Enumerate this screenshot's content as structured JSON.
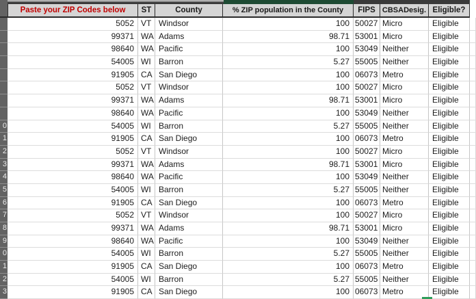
{
  "app": {
    "type": "spreadsheet-grid"
  },
  "columns": [
    {
      "id": "zip",
      "header": "Paste your ZIP Codes below"
    },
    {
      "id": "st",
      "header": "ST"
    },
    {
      "id": "county",
      "header": "County"
    },
    {
      "id": "pct",
      "header": "% ZIP population in the County"
    },
    {
      "id": "fips",
      "header": "FIPS"
    },
    {
      "id": "cbsa",
      "header": "CBSADesig."
    },
    {
      "id": "eligible",
      "header": "Eligible?"
    }
  ],
  "rows": [
    {
      "num": "",
      "zip": "5052",
      "st": "VT",
      "county": "Windsor",
      "pct": "100",
      "fips": "50027",
      "cbsa": "Micro",
      "eligible": "Eligible"
    },
    {
      "num": "",
      "zip": "99371",
      "st": "WA",
      "county": "Adams",
      "pct": "98.71",
      "fips": "53001",
      "cbsa": "Micro",
      "eligible": "Eligible"
    },
    {
      "num": "",
      "zip": "98640",
      "st": "WA",
      "county": "Pacific",
      "pct": "100",
      "fips": "53049",
      "cbsa": "Neither",
      "eligible": "Eligible"
    },
    {
      "num": "",
      "zip": "54005",
      "st": "WI",
      "county": "Barron",
      "pct": "5.27",
      "fips": "55005",
      "cbsa": "Neither",
      "eligible": "Eligible"
    },
    {
      "num": "",
      "zip": "91905",
      "st": "CA",
      "county": "San Diego",
      "pct": "100",
      "fips": "06073",
      "cbsa": "Metro",
      "eligible": "Eligible"
    },
    {
      "num": "",
      "zip": "5052",
      "st": "VT",
      "county": "Windsor",
      "pct": "100",
      "fips": "50027",
      "cbsa": "Micro",
      "eligible": "Eligible"
    },
    {
      "num": "",
      "zip": "99371",
      "st": "WA",
      "county": "Adams",
      "pct": "98.71",
      "fips": "53001",
      "cbsa": "Micro",
      "eligible": "Eligible"
    },
    {
      "num": "",
      "zip": "98640",
      "st": "WA",
      "county": "Pacific",
      "pct": "100",
      "fips": "53049",
      "cbsa": "Neither",
      "eligible": "Eligible"
    },
    {
      "num": "0",
      "zip": "54005",
      "st": "WI",
      "county": "Barron",
      "pct": "5.27",
      "fips": "55005",
      "cbsa": "Neither",
      "eligible": "Eligible"
    },
    {
      "num": "1",
      "zip": "91905",
      "st": "CA",
      "county": "San Diego",
      "pct": "100",
      "fips": "06073",
      "cbsa": "Metro",
      "eligible": "Eligible"
    },
    {
      "num": "2",
      "zip": "5052",
      "st": "VT",
      "county": "Windsor",
      "pct": "100",
      "fips": "50027",
      "cbsa": "Micro",
      "eligible": "Eligible"
    },
    {
      "num": "3",
      "zip": "99371",
      "st": "WA",
      "county": "Adams",
      "pct": "98.71",
      "fips": "53001",
      "cbsa": "Micro",
      "eligible": "Eligible"
    },
    {
      "num": "4",
      "zip": "98640",
      "st": "WA",
      "county": "Pacific",
      "pct": "100",
      "fips": "53049",
      "cbsa": "Neither",
      "eligible": "Eligible"
    },
    {
      "num": "5",
      "zip": "54005",
      "st": "WI",
      "county": "Barron",
      "pct": "5.27",
      "fips": "55005",
      "cbsa": "Neither",
      "eligible": "Eligible"
    },
    {
      "num": "6",
      "zip": "91905",
      "st": "CA",
      "county": "San Diego",
      "pct": "100",
      "fips": "06073",
      "cbsa": "Metro",
      "eligible": "Eligible"
    },
    {
      "num": "7",
      "zip": "5052",
      "st": "VT",
      "county": "Windsor",
      "pct": "100",
      "fips": "50027",
      "cbsa": "Micro",
      "eligible": "Eligible"
    },
    {
      "num": "8",
      "zip": "99371",
      "st": "WA",
      "county": "Adams",
      "pct": "98.71",
      "fips": "53001",
      "cbsa": "Micro",
      "eligible": "Eligible"
    },
    {
      "num": "9",
      "zip": "98640",
      "st": "WA",
      "county": "Pacific",
      "pct": "100",
      "fips": "53049",
      "cbsa": "Neither",
      "eligible": "Eligible"
    },
    {
      "num": "0",
      "zip": "54005",
      "st": "WI",
      "county": "Barron",
      "pct": "5.27",
      "fips": "55005",
      "cbsa": "Neither",
      "eligible": "Eligible"
    },
    {
      "num": "1",
      "zip": "91905",
      "st": "CA",
      "county": "San Diego",
      "pct": "100",
      "fips": "06073",
      "cbsa": "Metro",
      "eligible": "Eligible"
    },
    {
      "num": "2",
      "zip": "54005",
      "st": "WI",
      "county": "Barron",
      "pct": "5.27",
      "fips": "55005",
      "cbsa": "Neither",
      "eligible": "Eligible"
    },
    {
      "num": "3",
      "zip": "91905",
      "st": "CA",
      "county": "San Diego",
      "pct": "100",
      "fips": "06073",
      "cbsa": "Metro",
      "eligible": "Eligible"
    }
  ],
  "colors": {
    "header_text_red": "#C00000",
    "header_bg": "#D5D5D5",
    "header_border": "#2B2B2B",
    "row_header_bg": "#636363",
    "strip_green": "#1D4A33",
    "selection_green": "#2E9E5B",
    "grid_vertical": "#C6C6C6",
    "grid_horizontal": "#DCDCDC"
  }
}
